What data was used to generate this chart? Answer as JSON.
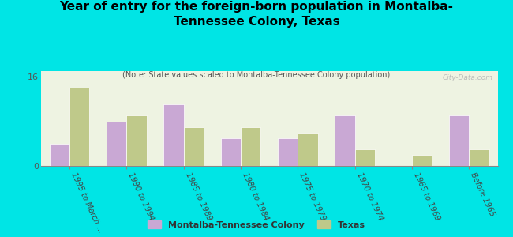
{
  "title": "Year of entry for the foreign-born population in Montalba-\nTennessee Colony, Texas",
  "subtitle": "(Note: State values scaled to Montalba-Tennessee Colony population)",
  "categories": [
    "1995 to March ...",
    "1990 to 1994",
    "1985 to 1989",
    "1980 to 1984",
    "1975 to 1979",
    "1970 to 1974",
    "1965 to 1969",
    "Before 1965"
  ],
  "montalba_values": [
    4,
    8,
    11,
    5,
    5,
    9,
    0,
    9
  ],
  "texas_values": [
    14,
    9,
    7,
    7,
    6,
    3,
    2,
    3
  ],
  "montalba_color": "#c9a8d4",
  "texas_color": "#bfc98a",
  "background_color": "#00e5e5",
  "plot_bg": "#eef3e2",
  "ylim": [
    0,
    16
  ],
  "yticks": [
    0,
    16
  ],
  "bar_width": 0.35,
  "watermark": "City-Data.com",
  "legend_montalba": "Montalba-Tennessee Colony",
  "legend_texas": "Texas",
  "title_fontsize": 11,
  "subtitle_fontsize": 7
}
